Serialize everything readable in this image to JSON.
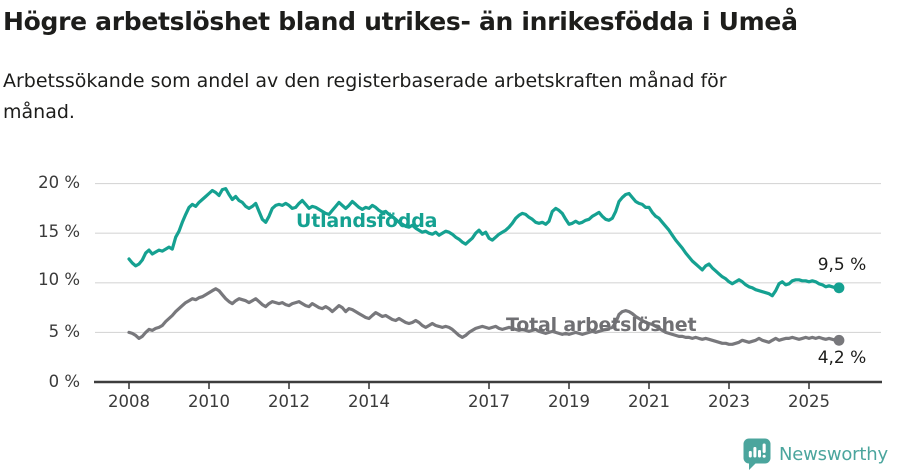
{
  "title": "Högre arbetslöshet bland utrikes- än inrikesfödda i Umeå",
  "subtitle": "Arbetssökande som andel av den registerbaserade arbetskraften månad för månad.",
  "footer": {
    "brand": "Newsworthy",
    "brand_color": "#4ba59d",
    "logo_icon": "bar-chart-speech-bubble-icon"
  },
  "chart_data": {
    "type": "line",
    "title": "Högre arbetslöshet bland utrikes- än inrikesfödda i Umeå",
    "subtitle": "Arbetssökande som andel av den registerbaserade arbetskraften månad för månad.",
    "x_unit": "month",
    "x_start": "2008-01",
    "x_end": "2025-10",
    "xlim": [
      2008,
      2026
    ],
    "ylim": [
      0,
      21
    ],
    "grid": true,
    "legend_position": "inline-labels-on-lines",
    "y_ticks": [
      "0 %",
      "5 %",
      "10 %",
      "15 %",
      "20 %"
    ],
    "y_tick_values": [
      0,
      5,
      10,
      15,
      20
    ],
    "x_tick_years": [
      2008,
      2010,
      2012,
      2014,
      2017,
      2019,
      2021,
      2023,
      2025
    ],
    "x_tick_labels": [
      "2008",
      "2010",
      "2012",
      "2014",
      "2017",
      "2019",
      "2021",
      "2023",
      "2025"
    ],
    "series": [
      {
        "name": "Utlandsfödda",
        "color": "#15a191",
        "end_label": "9,5 %",
        "end_value": 9.5,
        "values": [
          12.4,
          12.0,
          11.7,
          11.9,
          12.3,
          13.0,
          13.3,
          12.9,
          13.1,
          13.3,
          13.2,
          13.4,
          13.6,
          13.4,
          14.6,
          15.2,
          16.1,
          16.9,
          17.6,
          17.9,
          17.7,
          18.1,
          18.4,
          18.7,
          19.0,
          19.3,
          19.1,
          18.8,
          19.4,
          19.5,
          18.9,
          18.4,
          18.7,
          18.3,
          18.1,
          17.7,
          17.5,
          17.7,
          18.0,
          17.2,
          16.4,
          16.1,
          16.7,
          17.5,
          17.8,
          17.9,
          17.8,
          18.0,
          17.8,
          17.5,
          17.6,
          18.0,
          18.3,
          17.9,
          17.5,
          17.7,
          17.6,
          17.4,
          17.2,
          17.0,
          16.9,
          17.3,
          17.7,
          18.1,
          17.8,
          17.5,
          17.8,
          18.2,
          17.9,
          17.6,
          17.4,
          17.6,
          17.5,
          17.8,
          17.6,
          17.3,
          17.1,
          17.2,
          16.9,
          16.7,
          16.4,
          16.1,
          15.9,
          15.7,
          15.6,
          15.8,
          15.5,
          15.3,
          15.1,
          15.2,
          15.0,
          14.9,
          15.1,
          14.8,
          15.0,
          15.2,
          15.1,
          14.9,
          14.6,
          14.4,
          14.1,
          13.9,
          14.2,
          14.5,
          15.0,
          15.3,
          14.9,
          15.1,
          14.5,
          14.3,
          14.6,
          14.9,
          15.1,
          15.3,
          15.6,
          16.0,
          16.5,
          16.8,
          17.0,
          16.9,
          16.6,
          16.4,
          16.1,
          16.0,
          16.1,
          15.9,
          16.2,
          17.2,
          17.5,
          17.3,
          17.0,
          16.4,
          15.9,
          16.0,
          16.2,
          16.0,
          16.1,
          16.3,
          16.4,
          16.7,
          16.9,
          17.1,
          16.7,
          16.4,
          16.3,
          16.5,
          17.2,
          18.2,
          18.6,
          18.9,
          19.0,
          18.6,
          18.2,
          18.0,
          17.9,
          17.6,
          17.6,
          17.1,
          16.7,
          16.5,
          16.1,
          15.7,
          15.3,
          14.8,
          14.3,
          13.9,
          13.5,
          13.0,
          12.6,
          12.2,
          11.9,
          11.6,
          11.3,
          11.7,
          11.9,
          11.5,
          11.2,
          10.9,
          10.6,
          10.4,
          10.1,
          9.9,
          10.1,
          10.3,
          10.1,
          9.8,
          9.6,
          9.5,
          9.3,
          9.2,
          9.1,
          9.0,
          8.9,
          8.7,
          9.2,
          9.9,
          10.1,
          9.8,
          9.9,
          10.2,
          10.3,
          10.3,
          10.2,
          10.2,
          10.1,
          10.2,
          10.1,
          9.9,
          9.8,
          9.6,
          9.7,
          9.6,
          9.5,
          9.5
        ]
      },
      {
        "name": "Total arbetslöshet",
        "color": "#78787c",
        "end_label": "4,2 %",
        "end_value": 4.2,
        "values": [
          5.0,
          4.9,
          4.7,
          4.4,
          4.6,
          5.0,
          5.3,
          5.2,
          5.4,
          5.5,
          5.7,
          6.1,
          6.4,
          6.7,
          7.1,
          7.4,
          7.7,
          8.0,
          8.2,
          8.4,
          8.3,
          8.5,
          8.6,
          8.8,
          9.0,
          9.2,
          9.4,
          9.2,
          8.8,
          8.4,
          8.1,
          7.9,
          8.2,
          8.4,
          8.3,
          8.2,
          8.0,
          8.2,
          8.4,
          8.1,
          7.8,
          7.6,
          7.9,
          8.1,
          8.0,
          7.9,
          8.0,
          7.8,
          7.7,
          7.9,
          8.0,
          8.1,
          7.9,
          7.7,
          7.6,
          7.9,
          7.7,
          7.5,
          7.4,
          7.6,
          7.4,
          7.1,
          7.4,
          7.7,
          7.5,
          7.1,
          7.4,
          7.3,
          7.1,
          6.9,
          6.7,
          6.5,
          6.4,
          6.7,
          7.0,
          6.8,
          6.6,
          6.7,
          6.5,
          6.3,
          6.2,
          6.4,
          6.2,
          6.0,
          5.9,
          6.0,
          6.2,
          6.0,
          5.7,
          5.5,
          5.7,
          5.9,
          5.7,
          5.6,
          5.5,
          5.6,
          5.5,
          5.3,
          5.0,
          4.7,
          4.5,
          4.7,
          5.0,
          5.2,
          5.4,
          5.5,
          5.6,
          5.5,
          5.4,
          5.5,
          5.6,
          5.4,
          5.3,
          5.4,
          5.5,
          5.4,
          5.3,
          5.2,
          5.3,
          5.2,
          5.1,
          5.2,
          5.3,
          5.1,
          5.0,
          4.9,
          5.0,
          5.1,
          5.0,
          4.9,
          4.8,
          4.9,
          4.8,
          4.9,
          5.0,
          4.9,
          4.8,
          4.9,
          5.0,
          5.1,
          5.0,
          5.1,
          5.2,
          5.3,
          5.4,
          5.5,
          6.0,
          6.8,
          7.1,
          7.2,
          7.1,
          6.9,
          6.6,
          6.4,
          6.2,
          6.0,
          5.9,
          5.8,
          5.6,
          5.4,
          5.2,
          5.0,
          4.9,
          4.8,
          4.7,
          4.6,
          4.6,
          4.5,
          4.5,
          4.4,
          4.5,
          4.4,
          4.3,
          4.4,
          4.3,
          4.2,
          4.1,
          4.0,
          3.9,
          3.9,
          3.8,
          3.8,
          3.9,
          4.0,
          4.2,
          4.1,
          4.0,
          4.1,
          4.2,
          4.4,
          4.2,
          4.1,
          4.0,
          4.2,
          4.4,
          4.2,
          4.3,
          4.4,
          4.4,
          4.5,
          4.4,
          4.3,
          4.4,
          4.5,
          4.4,
          4.5,
          4.4,
          4.5,
          4.4,
          4.3,
          4.4,
          4.3,
          4.2,
          4.2
        ]
      }
    ]
  }
}
